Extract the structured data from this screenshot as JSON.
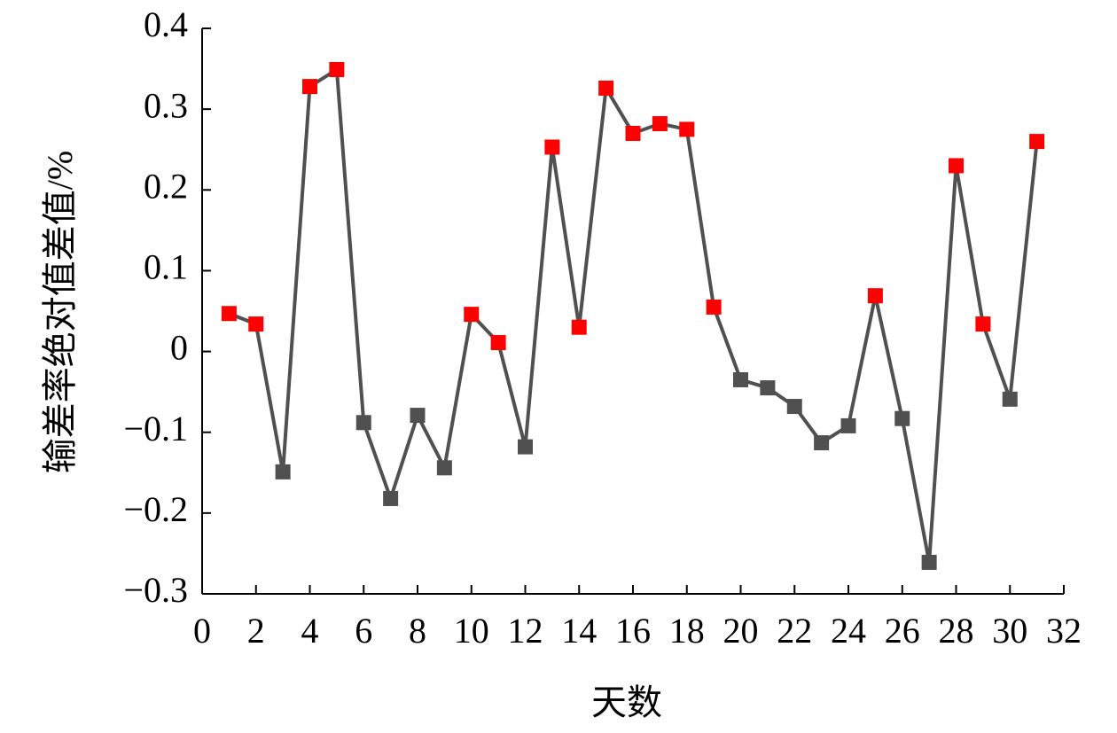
{
  "chart_data": {
    "type": "line",
    "x_label": "天数",
    "y_label": "输差率绝对值差值/%",
    "x": [
      1,
      2,
      3,
      4,
      5,
      6,
      7,
      8,
      9,
      10,
      11,
      12,
      13,
      14,
      15,
      16,
      17,
      18,
      19,
      20,
      21,
      22,
      23,
      24,
      25,
      26,
      27,
      28,
      29,
      30,
      31
    ],
    "values": [
      0.047,
      0.034,
      -0.149,
      0.328,
      0.349,
      -0.088,
      -0.182,
      -0.079,
      -0.144,
      0.046,
      0.011,
      -0.118,
      0.253,
      0.03,
      0.326,
      0.27,
      0.282,
      0.275,
      0.055,
      -0.035,
      -0.045,
      -0.068,
      -0.113,
      -0.092,
      0.069,
      -0.083,
      -0.261,
      0.23,
      0.034,
      -0.059,
      0.26
    ],
    "line_color": "#505050",
    "positive_color": "#ff0000",
    "negative_color": "#505050",
    "xlim": [
      0,
      32
    ],
    "xticks": [
      0,
      2,
      4,
      6,
      8,
      10,
      12,
      14,
      16,
      18,
      20,
      22,
      24,
      26,
      28,
      30,
      32
    ],
    "ylim": [
      -0.3,
      0.4
    ],
    "yticks": [
      {
        "value": -0.3,
        "label": "−0.3"
      },
      {
        "value": -0.2,
        "label": "−0.2"
      },
      {
        "value": -0.1,
        "label": "−0.1"
      },
      0,
      0.1,
      0.2,
      0.3,
      0.4
    ]
  }
}
